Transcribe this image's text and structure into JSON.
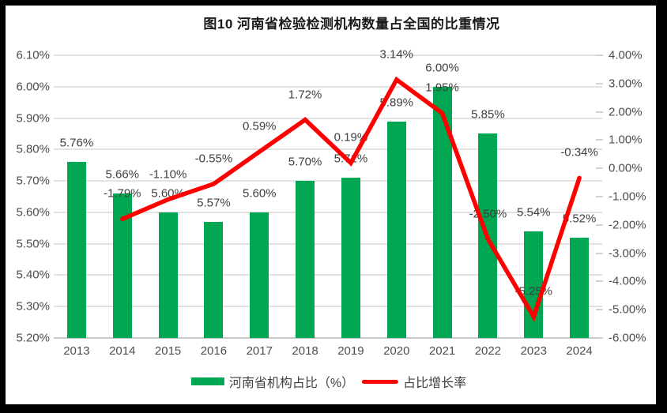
{
  "title": "图10  河南省检验检测机构数量占全国的比重情况",
  "legend": {
    "bar_label": "河南省机构占比（%）",
    "line_label": "占比增长率"
  },
  "colors": {
    "bar": "#00A651",
    "line": "#FF0000",
    "gridline": "#E2E2E2",
    "axis_text": "#4d4d4d",
    "frame_border": "#000000"
  },
  "chart_data": {
    "type": "bar+line",
    "title": "图10  河南省检验检测机构数量占全国的比重情况",
    "categories": [
      "2013",
      "2014",
      "2015",
      "2016",
      "2017",
      "2018",
      "2019",
      "2020",
      "2021",
      "2022",
      "2023",
      "2024"
    ],
    "series": [
      {
        "name": "河南省机构占比（%）",
        "type": "bar",
        "axis": "left",
        "color": "#00A651",
        "values": [
          5.76,
          5.66,
          5.6,
          5.57,
          5.6,
          5.7,
          5.71,
          5.89,
          6.0,
          5.85,
          5.54,
          5.52
        ],
        "labels": [
          "5.76%",
          "5.66%",
          "5.60%",
          "5.57%",
          "5.60%",
          "5.70%",
          "5.71%",
          "5.89%",
          "6.00%",
          "5.85%",
          "5.54%",
          "5.52%"
        ]
      },
      {
        "name": "占比增长率",
        "type": "line",
        "axis": "right",
        "color": "#FF0000",
        "values": [
          null,
          -1.79,
          -1.1,
          -0.55,
          0.59,
          1.72,
          0.19,
          3.14,
          1.95,
          -2.5,
          -5.25,
          -0.34
        ],
        "labels": [
          null,
          "-1.79%",
          "-1.10%",
          "-0.55%",
          "0.59%",
          "1.72%",
          "0.19%",
          "3.14%",
          "1.95%",
          "-2.50%",
          "-5.25%",
          "-0.34%"
        ]
      }
    ],
    "left_axis": {
      "min": 5.2,
      "max": 6.1,
      "step": 0.1,
      "ticks": [
        "6.10%",
        "6.00%",
        "5.90%",
        "5.80%",
        "5.70%",
        "5.60%",
        "5.50%",
        "5.40%",
        "5.30%",
        "5.20%"
      ]
    },
    "right_axis": {
      "min": -6.0,
      "max": 4.0,
      "step": 1.0,
      "ticks": [
        "4.00%",
        "3.00%",
        "2.00%",
        "1.00%",
        "0.00%",
        "-1.00%",
        "-2.00%",
        "-3.00%",
        "-4.00%",
        "-5.00%",
        "-6.00%"
      ]
    },
    "grid": true,
    "legend_position": "bottom"
  }
}
